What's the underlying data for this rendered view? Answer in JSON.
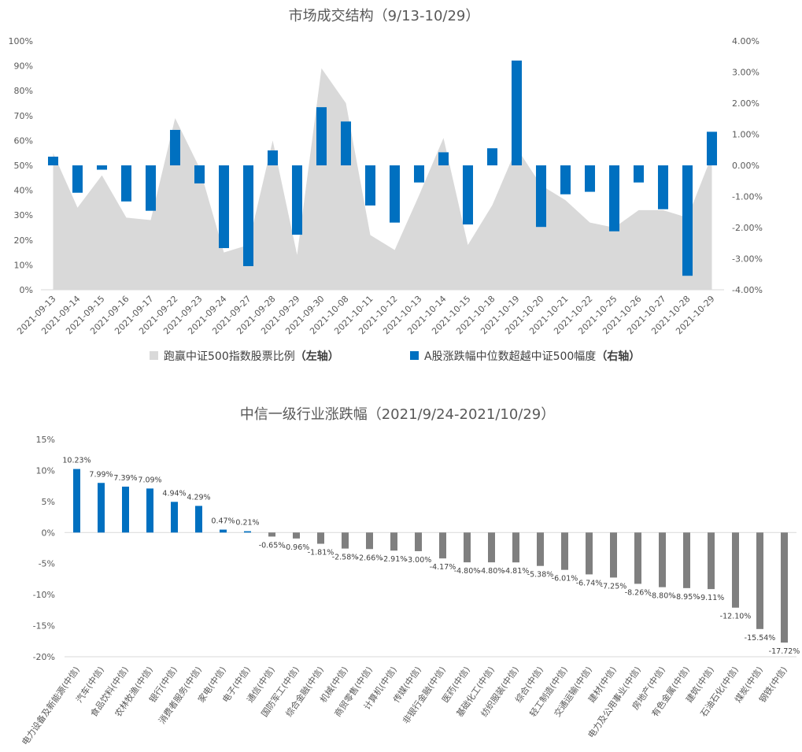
{
  "chart_data": [
    {
      "type": "bar",
      "title": "市场成交结构（9/13-10/29）",
      "categories": [
        "2021-09-13",
        "2021-09-14",
        "2021-09-15",
        "2021-09-16",
        "2021-09-17",
        "2021-09-22",
        "2021-09-23",
        "2021-09-24",
        "2021-09-27",
        "2021-09-28",
        "2021-09-29",
        "2021-09-30",
        "2021-10-08",
        "2021-10-11",
        "2021-10-12",
        "2021-10-13",
        "2021-10-14",
        "2021-10-15",
        "2021-10-18",
        "2021-10-19",
        "2021-10-20",
        "2021-10-21",
        "2021-10-22",
        "2021-10-25",
        "2021-10-26",
        "2021-10-27",
        "2021-10-28",
        "2021-10-29"
      ],
      "y_left": {
        "ticks": [
          "0%",
          "10%",
          "20%",
          "30%",
          "40%",
          "50%",
          "60%",
          "70%",
          "80%",
          "90%",
          "100%"
        ],
        "ylim": [
          0,
          100
        ]
      },
      "y_right": {
        "ticks": [
          "-4.00%",
          "-3.00%",
          "-2.00%",
          "-1.00%",
          "0.00%",
          "1.00%",
          "2.00%",
          "3.00%",
          "4.00%"
        ],
        "ylim": [
          -4,
          4
        ]
      },
      "series": [
        {
          "name": "跑赢中证500指数股票比例",
          "name_suffix": "（左轴）",
          "type": "area",
          "axis": "left",
          "color": "#d9d9d9",
          "values": [
            55,
            33,
            46,
            29,
            28,
            69,
            49,
            15,
            18,
            60,
            14,
            89,
            75,
            22,
            16,
            38,
            61,
            18,
            34,
            57,
            42,
            36,
            27,
            25,
            32,
            32,
            29,
            54
          ]
        },
        {
          "name": "A股涨跌幅中位数超越中证500幅度",
          "name_suffix": "（右轴）",
          "type": "bar",
          "axis": "right",
          "color": "#0070c0",
          "values": [
            0.28,
            -0.88,
            -0.14,
            -1.16,
            -1.46,
            1.14,
            -0.58,
            -2.66,
            -3.24,
            0.48,
            -2.23,
            1.87,
            1.41,
            -1.29,
            -1.84,
            -0.55,
            0.42,
            -1.9,
            0.55,
            3.37,
            -1.98,
            -0.93,
            -0.85,
            -2.12,
            -0.55,
            -1.41,
            -3.55,
            1.08
          ]
        }
      ]
    },
    {
      "type": "bar",
      "title": "中信一级行业涨跌幅（2021/9/24-2021/10/29）",
      "y_ticks": [
        "-20%",
        "-15%",
        "-10%",
        "-5%",
        "0%",
        "5%",
        "10%",
        "15%"
      ],
      "ylim": [
        -20,
        15
      ],
      "colors": {
        "positive": "#0070c0",
        "negative": "#7f7f7f"
      },
      "categories": [
        "电力设备及新能源(中信)",
        "汽车(中信)",
        "食品饮料(中信)",
        "农林牧渔(中信)",
        "银行(中信)",
        "消费者服务(中信)",
        "家电(中信)",
        "电子(中信)",
        "通信(中信)",
        "国防军工(中信)",
        "综合金融(中信)",
        "机械(中信)",
        "商贸零售(中信)",
        "计算机(中信)",
        "传媒(中信)",
        "非银行金融(中信)",
        "医药(中信)",
        "基础化工(中信)",
        "纺织服装(中信)",
        "综合(中信)",
        "轻工制造(中信)",
        "交通运输(中信)",
        "建材(中信)",
        "电力及公用事业(中信)",
        "房地产(中信)",
        "有色金属(中信)",
        "建筑(中信)",
        "石油石化(中信)",
        "煤炭(中信)",
        "钢铁(中信)"
      ],
      "values": [
        10.23,
        7.99,
        7.39,
        7.09,
        4.94,
        4.29,
        0.47,
        0.21,
        -0.65,
        -0.96,
        -1.81,
        -2.58,
        -2.66,
        -2.91,
        -3.0,
        -4.17,
        -4.8,
        -4.8,
        -4.81,
        -5.38,
        -6.01,
        -6.74,
        -7.25,
        -8.26,
        -8.8,
        -8.95,
        -9.11,
        -12.1,
        -15.54,
        -17.72
      ],
      "labels": [
        "10.23%",
        "7.99%",
        "7.39%",
        "7.09%",
        "4.94%",
        "4.29%",
        "0.47%",
        "0.21%",
        "-0.65%",
        "-0.96%",
        "-1.81%",
        "-2.58%",
        "-2.66%",
        "-2.91%",
        "-3.00%",
        "-4.17%",
        "-4.80%",
        "-4.80%",
        "-4.81%",
        "-5.38%",
        "-6.01%",
        "-6.74%",
        "-7.25%",
        "-8.26%",
        "-8.80%",
        "-8.95%",
        "-9.11%",
        "-12.10%",
        "-15.54%",
        "-17.72%"
      ]
    }
  ]
}
